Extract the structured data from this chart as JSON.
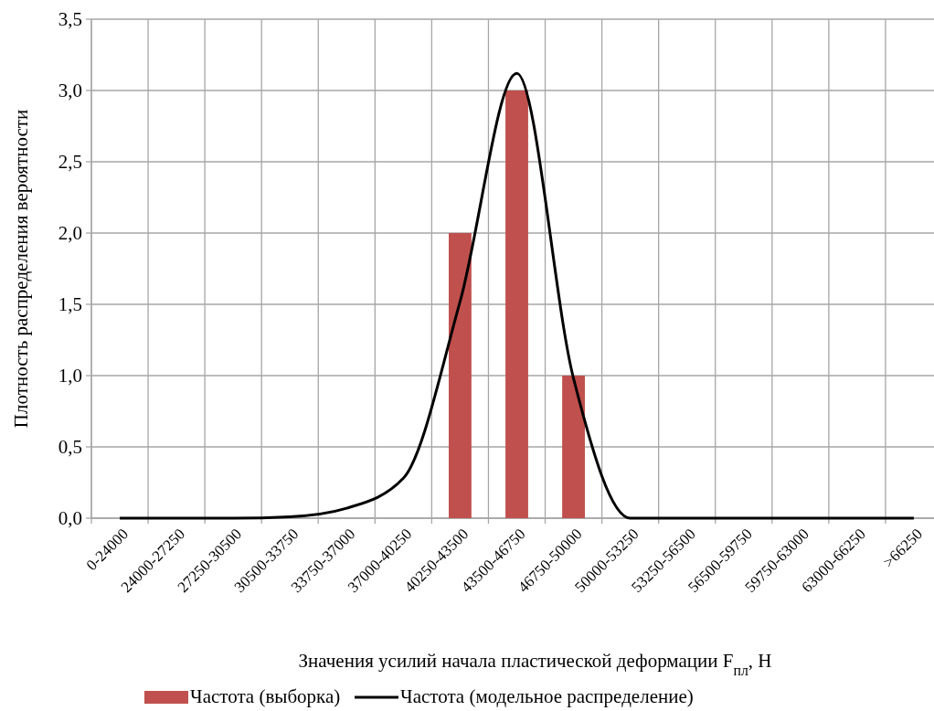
{
  "chart_data": {
    "type": "bar",
    "xlabel": "Значения усилий начала пластической деформации F$_{пл}$, Н",
    "ylabel": "Плотность распределения вероятности",
    "categories": [
      "0-24000",
      "24000-27250",
      "27250-30500",
      "30500-33750",
      "33750-37000",
      "37000-40250",
      "40250-43500",
      "43500-46750",
      "46750-50000",
      "50000-53250",
      "53250-56500",
      "56500-59750",
      "59750-63000",
      "63000-66250",
      ">66250"
    ],
    "series": [
      {
        "name": "Частота (выборка)",
        "color": "#c0504d",
        "values": [
          0,
          0,
          0,
          0,
          0,
          0,
          2,
          3,
          1,
          0,
          0,
          0,
          0,
          0,
          0
        ]
      },
      {
        "name": "Частота (модельное распределение)",
        "type": "line",
        "color": "#000000",
        "values": [
          0,
          0,
          0,
          0.01,
          0.07,
          0.28,
          1.52,
          3.12,
          0.98,
          0,
          0,
          0,
          0,
          0,
          0
        ]
      }
    ],
    "ylim": [
      0,
      3.5
    ],
    "yticks": [
      {
        "value": 0,
        "label": "0,0"
      },
      {
        "value": 0.5,
        "label": "0,5"
      },
      {
        "value": 1,
        "label": "1,0"
      },
      {
        "value": 1.5,
        "label": "1,5"
      },
      {
        "value": 2,
        "label": "2,0"
      },
      {
        "value": 2.5,
        "label": "2,5"
      },
      {
        "value": 3,
        "label": "3,0"
      },
      {
        "value": 3.5,
        "label": "3,5"
      }
    ],
    "grid": true,
    "legend": "bottom"
  }
}
